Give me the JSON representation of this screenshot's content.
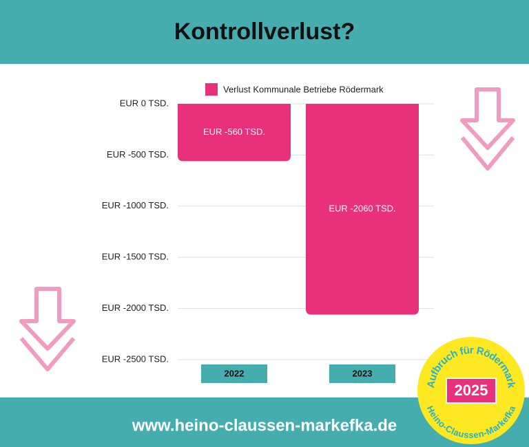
{
  "header": {
    "title": "Kontrollverlust?"
  },
  "footer": {
    "url": "www.heino-claussen-markefka.de"
  },
  "badge": {
    "top_text": "Aufbruch für Rödermark",
    "bottom_text": "Heino-Claussen-Markefka",
    "year": "2025"
  },
  "chart_data": {
    "type": "bar",
    "categories": [
      "2022",
      "2023"
    ],
    "series": [
      {
        "name": "Verlust Kommunale Betriebe Rödermark",
        "color": "#e8317a",
        "values": [
          -560,
          -2060
        ],
        "value_labels": [
          "EUR -560 TSD.",
          "EUR -2060 TSD."
        ]
      }
    ],
    "ylim": [
      -2500,
      0
    ],
    "yticks": [
      {
        "value": 0,
        "label": "EUR 0 TSD."
      },
      {
        "value": -500,
        "label": "EUR -500 TSD."
      },
      {
        "value": -1000,
        "label": "EUR -1000 TSD."
      },
      {
        "value": -1500,
        "label": "EUR -1500 TSD."
      },
      {
        "value": -2000,
        "label": "EUR -2000 TSD."
      },
      {
        "value": -2500,
        "label": "EUR -2500 TSD."
      }
    ],
    "grid": true
  }
}
